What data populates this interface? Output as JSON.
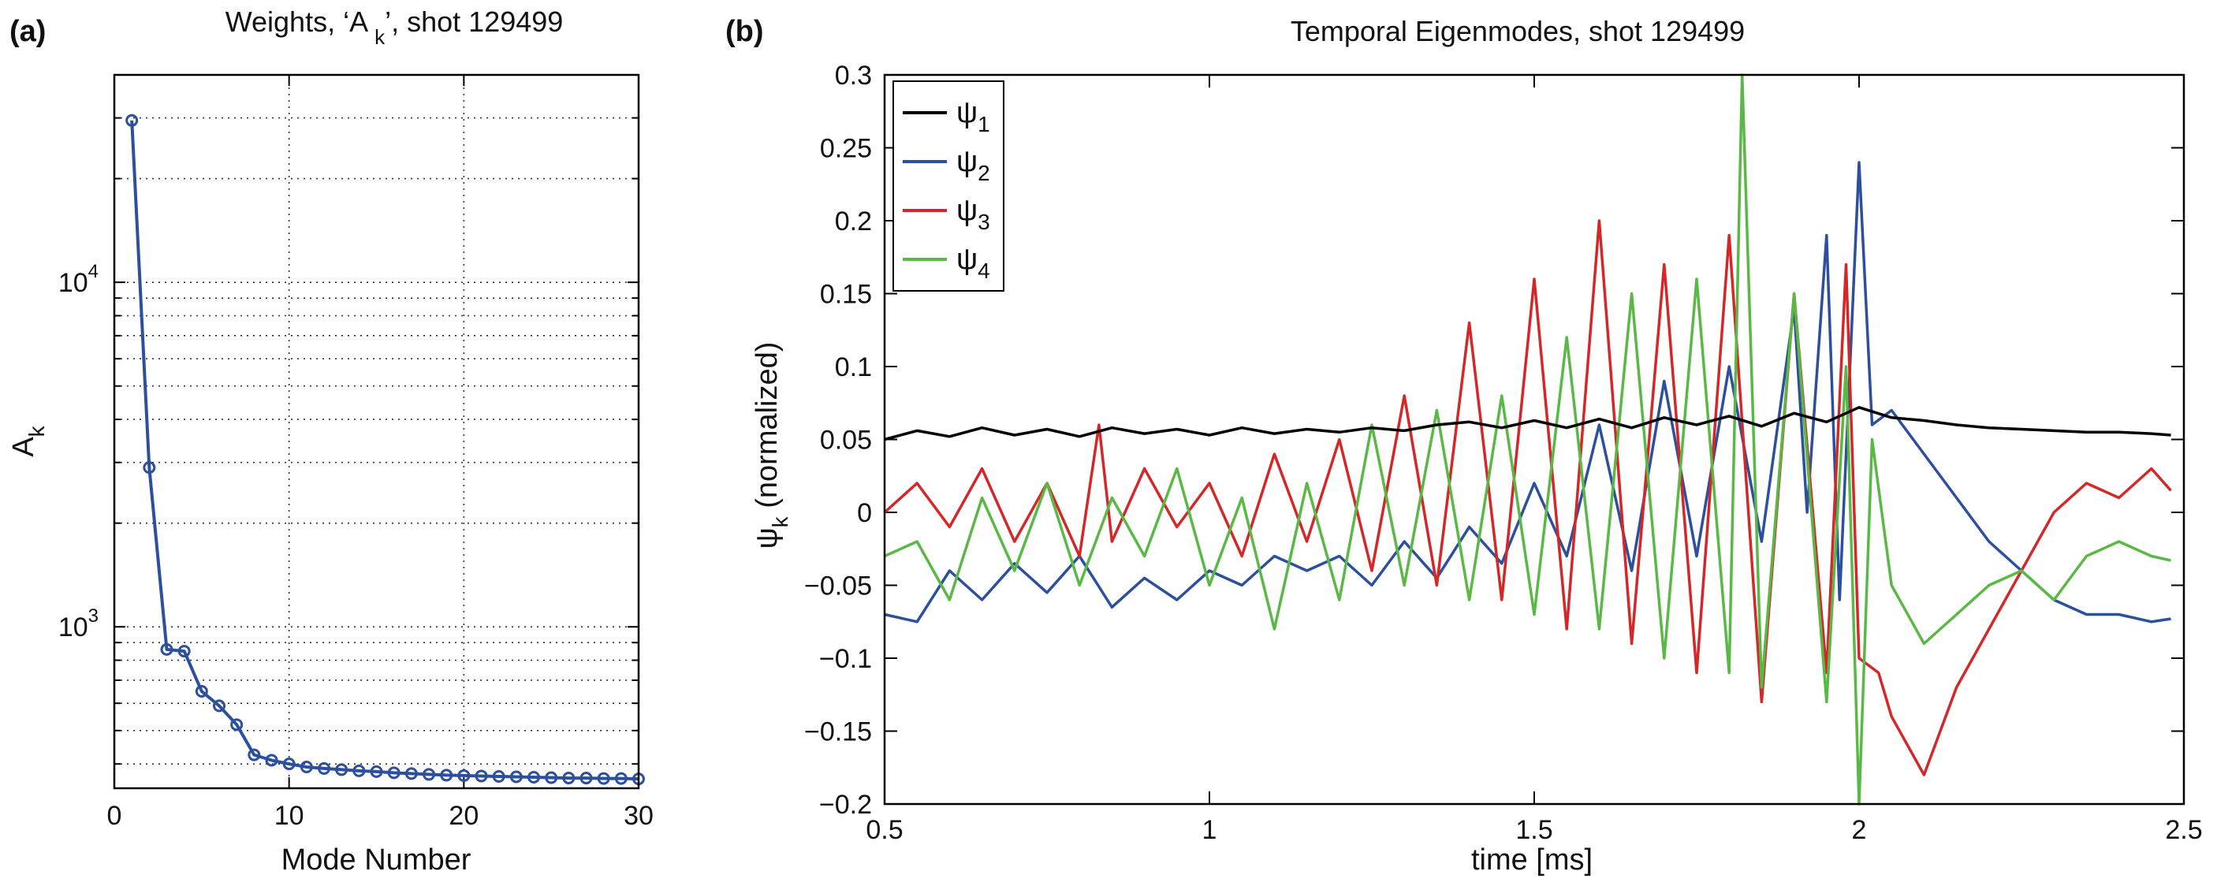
{
  "chart_data": [
    {
      "panel": "(a)",
      "type": "line",
      "title_main": "Weights, ‘A ",
      "title_sub": "k",
      "title_tail": "’, shot 129499",
      "xlabel": "Mode Number",
      "ylabel_main": "A",
      "ylabel_sub": "k",
      "yscale": "log",
      "xlim": [
        0,
        30
      ],
      "ylim": [
        340,
        40000
      ],
      "x_ticks": [
        0,
        10,
        20,
        30
      ],
      "y_ticks": [
        {
          "value": 1000,
          "base": "10",
          "exp": "3"
        },
        {
          "value": 10000,
          "base": "10",
          "exp": "4"
        }
      ],
      "grid": true,
      "series": [
        {
          "color": "#2c4f9e",
          "marker": "circle",
          "x": [
            1,
            2,
            3,
            4,
            5,
            6,
            7,
            8,
            9,
            10,
            11,
            12,
            13,
            14,
            15,
            16,
            17,
            18,
            19,
            20,
            21,
            22,
            23,
            24,
            25,
            26,
            27,
            28,
            29,
            30
          ],
          "y": [
            29500,
            2900,
            860,
            850,
            650,
            590,
            520,
            425,
            410,
            400,
            392,
            388,
            385,
            382,
            380,
            377,
            375,
            373,
            371,
            370,
            369,
            368,
            367,
            366,
            365,
            364,
            364,
            363,
            363,
            362
          ]
        }
      ]
    },
    {
      "panel": "(b)",
      "type": "line",
      "title": "Temporal Eigenmodes, shot 129499",
      "xlabel": "time [ms]",
      "ylabel_main": "ψ",
      "ylabel_sub": "k",
      "ylabel_tail": " (normalized)",
      "xlim": [
        0.5,
        2.5
      ],
      "ylim": [
        -0.2,
        0.3
      ],
      "x_ticks": [
        "0.5",
        "1",
        "1.5",
        "2",
        "2.5"
      ],
      "x_tick_values": [
        0.5,
        1,
        1.5,
        2,
        2.5
      ],
      "y_ticks": [
        "0.3",
        "0.25",
        "0.2",
        "0.15",
        "0.1",
        "0.05",
        "0",
        "−0.05",
        "−0.1",
        "−0.15",
        "−0.2"
      ],
      "y_tick_values": [
        0.3,
        0.25,
        0.2,
        0.15,
        0.1,
        0.05,
        0,
        -0.05,
        -0.1,
        -0.15,
        -0.2
      ],
      "grid": false,
      "legend_position": "top-left",
      "series": [
        {
          "name": "ψ",
          "sub": "1",
          "color": "#000000",
          "x": [
            0.5,
            0.55,
            0.6,
            0.65,
            0.7,
            0.75,
            0.8,
            0.85,
            0.9,
            0.95,
            1.0,
            1.05,
            1.1,
            1.15,
            1.2,
            1.25,
            1.3,
            1.35,
            1.4,
            1.45,
            1.5,
            1.55,
            1.6,
            1.65,
            1.7,
            1.75,
            1.8,
            1.85,
            1.9,
            1.95,
            2.0,
            2.05,
            2.1,
            2.15,
            2.2,
            2.25,
            2.3,
            2.35,
            2.4,
            2.45,
            2.48
          ],
          "y": [
            0.05,
            0.056,
            0.052,
            0.058,
            0.053,
            0.057,
            0.052,
            0.058,
            0.054,
            0.057,
            0.053,
            0.058,
            0.054,
            0.057,
            0.055,
            0.058,
            0.056,
            0.06,
            0.062,
            0.058,
            0.063,
            0.058,
            0.064,
            0.058,
            0.065,
            0.06,
            0.066,
            0.059,
            0.068,
            0.062,
            0.072,
            0.065,
            0.063,
            0.06,
            0.058,
            0.057,
            0.056,
            0.055,
            0.055,
            0.054,
            0.053
          ]
        },
        {
          "name": "ψ",
          "sub": "2",
          "color": "#2c4f9e",
          "x": [
            0.5,
            0.55,
            0.6,
            0.65,
            0.7,
            0.75,
            0.8,
            0.85,
            0.9,
            0.95,
            1.0,
            1.05,
            1.1,
            1.15,
            1.2,
            1.25,
            1.3,
            1.35,
            1.4,
            1.45,
            1.5,
            1.55,
            1.6,
            1.65,
            1.7,
            1.75,
            1.8,
            1.85,
            1.9,
            1.92,
            1.95,
            1.97,
            2.0,
            2.02,
            2.05,
            2.1,
            2.15,
            2.2,
            2.25,
            2.3,
            2.35,
            2.4,
            2.45,
            2.48
          ],
          "y": [
            -0.07,
            -0.075,
            -0.04,
            -0.06,
            -0.035,
            -0.055,
            -0.03,
            -0.065,
            -0.045,
            -0.06,
            -0.04,
            -0.05,
            -0.03,
            -0.04,
            -0.03,
            -0.05,
            -0.02,
            -0.045,
            -0.01,
            -0.035,
            0.02,
            -0.03,
            0.06,
            -0.04,
            0.09,
            -0.03,
            0.1,
            -0.02,
            0.14,
            0.0,
            0.19,
            -0.06,
            0.24,
            0.06,
            0.07,
            0.04,
            0.01,
            -0.02,
            -0.04,
            -0.06,
            -0.07,
            -0.07,
            -0.075,
            -0.073
          ]
        },
        {
          "name": "ψ",
          "sub": "3",
          "color": "#d62728",
          "x": [
            0.5,
            0.55,
            0.6,
            0.65,
            0.7,
            0.75,
            0.8,
            0.83,
            0.85,
            0.9,
            0.95,
            1.0,
            1.05,
            1.1,
            1.15,
            1.2,
            1.25,
            1.3,
            1.35,
            1.4,
            1.45,
            1.5,
            1.55,
            1.6,
            1.65,
            1.7,
            1.75,
            1.8,
            1.85,
            1.9,
            1.95,
            1.98,
            2.0,
            2.03,
            2.05,
            2.1,
            2.15,
            2.2,
            2.25,
            2.3,
            2.35,
            2.4,
            2.45,
            2.48
          ],
          "y": [
            0.0,
            0.02,
            -0.01,
            0.03,
            -0.02,
            0.02,
            -0.03,
            0.06,
            -0.02,
            0.03,
            -0.01,
            0.02,
            -0.03,
            0.04,
            -0.02,
            0.05,
            -0.04,
            0.08,
            -0.05,
            0.13,
            -0.06,
            0.16,
            -0.08,
            0.2,
            -0.09,
            0.17,
            -0.11,
            0.19,
            -0.13,
            0.15,
            -0.11,
            0.17,
            -0.1,
            -0.11,
            -0.14,
            -0.18,
            -0.12,
            -0.08,
            -0.04,
            0.0,
            0.02,
            0.01,
            0.03,
            0.015
          ]
        },
        {
          "name": "ψ",
          "sub": "4",
          "color": "#5ab946",
          "x": [
            0.5,
            0.55,
            0.6,
            0.65,
            0.7,
            0.75,
            0.8,
            0.85,
            0.9,
            0.95,
            1.0,
            1.05,
            1.1,
            1.15,
            1.2,
            1.25,
            1.3,
            1.35,
            1.4,
            1.45,
            1.5,
            1.55,
            1.6,
            1.65,
            1.7,
            1.75,
            1.8,
            1.82,
            1.85,
            1.9,
            1.95,
            1.98,
            2.0,
            2.02,
            2.05,
            2.1,
            2.15,
            2.2,
            2.25,
            2.3,
            2.35,
            2.4,
            2.45,
            2.48
          ],
          "y": [
            -0.03,
            -0.02,
            -0.06,
            0.01,
            -0.04,
            0.02,
            -0.05,
            0.01,
            -0.03,
            0.03,
            -0.05,
            0.01,
            -0.08,
            0.02,
            -0.06,
            0.06,
            -0.05,
            0.07,
            -0.06,
            0.08,
            -0.07,
            0.12,
            -0.08,
            0.15,
            -0.1,
            0.16,
            -0.11,
            0.3,
            -0.12,
            0.15,
            -0.13,
            0.1,
            -0.2,
            0.05,
            -0.05,
            -0.09,
            -0.07,
            -0.05,
            -0.04,
            -0.06,
            -0.03,
            -0.02,
            -0.03,
            -0.033
          ]
        }
      ]
    }
  ]
}
